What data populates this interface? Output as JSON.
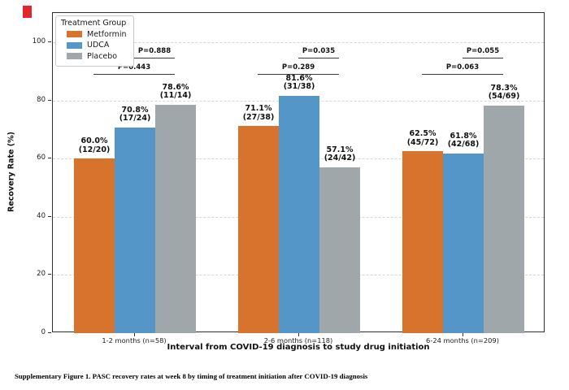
{
  "figure": {
    "caption": "Supplementary Figure 1. PASC recovery rates at week 8 by timing of treatment initiation after COVID-19 diagnosis"
  },
  "red_marker": {
    "color": "#E2262B"
  },
  "chart_data": {
    "type": "bar",
    "title": "",
    "xlabel": "Interval from COVID-19 diagnosis to study drug initiation",
    "ylabel": "Recovery Rate (%)",
    "ylim": [
      0,
      110
    ],
    "yticks": [
      0,
      20,
      40,
      60,
      80,
      100
    ],
    "grid": "horizontal-dashed",
    "legend_title": "Treatment Group",
    "legend_position": "upper-left",
    "categories": [
      "1-2 months (n=58)",
      "2-6 months (n=118)",
      "6-24 months (n=209)"
    ],
    "series": [
      {
        "name": "Metformin",
        "color": "#D8732D",
        "values": [
          60.0,
          71.1,
          62.5
        ],
        "labels": [
          "60.0%",
          "71.1%",
          "62.5%"
        ],
        "fractions": [
          "(12/20)",
          "(27/38)",
          "(45/72)"
        ]
      },
      {
        "name": "UDCA",
        "color": "#5596C8",
        "values": [
          70.8,
          81.6,
          61.8
        ],
        "labels": [
          "70.8%",
          "81.6%",
          "61.8%"
        ],
        "fractions": [
          "(17/24)",
          "(31/38)",
          "(42/68)"
        ]
      },
      {
        "name": "Placebo",
        "color": "#A0A7AA",
        "values": [
          78.6,
          57.1,
          78.3
        ],
        "labels": [
          "78.6%",
          "57.1%",
          "78.3%"
        ],
        "fractions": [
          "(11/14)",
          "(24/42)",
          "(54/69)"
        ]
      }
    ],
    "pvalue_brackets": [
      {
        "group": 0,
        "label": "P=0.443",
        "from_series": 0,
        "to_series": 2,
        "level": "lower",
        "comparison": "Metformin vs Placebo"
      },
      {
        "group": 0,
        "label": "P=0.888",
        "from_series": 1,
        "to_series": 2,
        "level": "upper",
        "comparison": "UDCA vs Placebo"
      },
      {
        "group": 1,
        "label": "P=0.289",
        "from_series": 0,
        "to_series": 2,
        "level": "lower",
        "comparison": "Metformin vs Placebo"
      },
      {
        "group": 1,
        "label": "P=0.035",
        "from_series": 1,
        "to_series": 2,
        "level": "upper",
        "comparison": "UDCA vs Placebo"
      },
      {
        "group": 2,
        "label": "P=0.063",
        "from_series": 0,
        "to_series": 2,
        "level": "lower",
        "comparison": "Metformin vs Placebo"
      },
      {
        "group": 2,
        "label": "P=0.055",
        "from_series": 1,
        "to_series": 2,
        "level": "upper",
        "comparison": "UDCA vs Placebo"
      }
    ]
  }
}
